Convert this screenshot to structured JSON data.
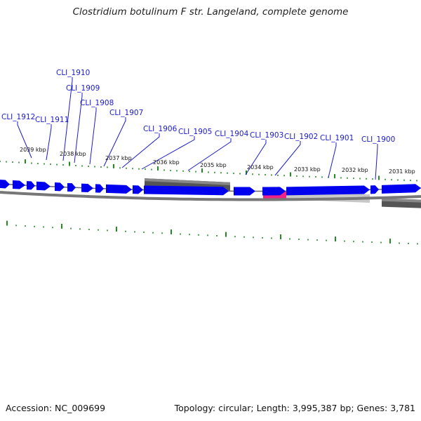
{
  "title": "Clostridium botulinum F str. Langeland, complete genome",
  "footer": {
    "accession": "Accession: NC_009699",
    "summary": "Topology: circular; Length: 3,995,387 bp; Genes: 3,781"
  },
  "colors": {
    "gene": "#0000ee",
    "label": "#1a1acc",
    "tick": "#228b22",
    "backbone": "#7a7a7a",
    "highlight": "#ee2288"
  },
  "kbp_labels": [
    "2039 kbp",
    "2038 kbp",
    "2037 kbp",
    "2036 kbp",
    "2035 kbp",
    "2034 kbp",
    "2033 kbp",
    "2032 kbp",
    "2031 kbp"
  ],
  "gene_labels": [
    "CLI_1912",
    "CLI_1911",
    "CLI_1910",
    "CLI_1909",
    "CLI_1908",
    "CLI_1907",
    "CLI_1906",
    "CLI_1905",
    "CLI_1904",
    "CLI_1903",
    "CLI_1902",
    "CLI_1901",
    "CLI_1900"
  ]
}
